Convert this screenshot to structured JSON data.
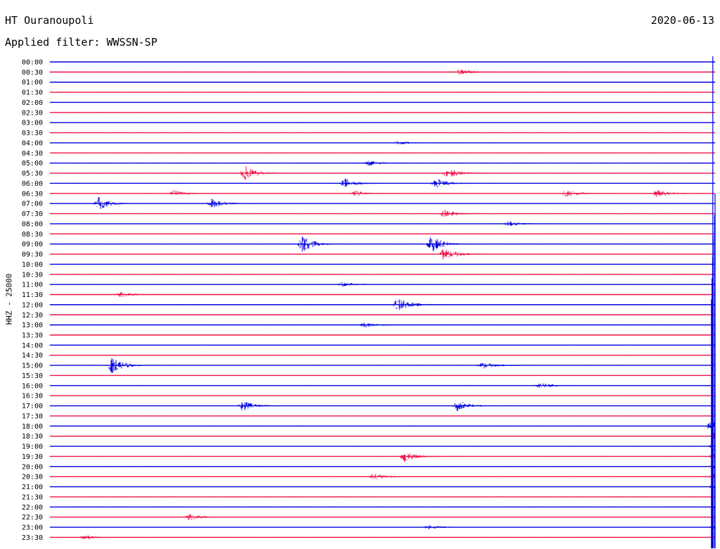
{
  "header": {
    "station": "HT Ouranoupoli",
    "date": "2020-06-13",
    "filter_label": "Applied filter: WWSSN-SP"
  },
  "channel_label": "HHZ - 25000",
  "colors": {
    "even_hour": "#0000dd",
    "odd_hour": "#ee1144",
    "background": "#ffffff"
  },
  "chart_data": {
    "type": "line",
    "kind": "helicorder",
    "row_duration_minutes": 30,
    "rows": [
      "00:00",
      "00:30",
      "01:00",
      "01:30",
      "02:00",
      "02:30",
      "03:00",
      "03:30",
      "04:00",
      "04:30",
      "05:00",
      "05:30",
      "06:00",
      "06:30",
      "07:00",
      "07:30",
      "08:00",
      "08:30",
      "09:00",
      "09:30",
      "10:00",
      "10:30",
      "11:00",
      "11:30",
      "12:00",
      "12:30",
      "13:00",
      "13:30",
      "14:00",
      "14:30",
      "15:00",
      "15:30",
      "16:00",
      "16:30",
      "17:00",
      "17:30",
      "18:00",
      "18:30",
      "19:00",
      "19:30",
      "20:00",
      "20:30",
      "21:00",
      "21:30",
      "22:00",
      "22:30",
      "23:00",
      "23:30"
    ],
    "events": [
      {
        "row": 1,
        "minute": 18.5,
        "amp": 0.6
      },
      {
        "row": 8,
        "minute": 15.7,
        "amp": 0.4
      },
      {
        "row": 10,
        "minute": 14.4,
        "amp": 0.5
      },
      {
        "row": 11,
        "minute": 8.8,
        "amp": 1.6
      },
      {
        "row": 11,
        "minute": 17.9,
        "amp": 1.1
      },
      {
        "row": 12,
        "minute": 13.3,
        "amp": 1.0
      },
      {
        "row": 12,
        "minute": 17.4,
        "amp": 1.0
      },
      {
        "row": 13,
        "minute": 5.6,
        "amp": 0.6
      },
      {
        "row": 13,
        "minute": 13.8,
        "amp": 0.6
      },
      {
        "row": 13,
        "minute": 23.3,
        "amp": 0.8
      },
      {
        "row": 13,
        "minute": 27.4,
        "amp": 0.8
      },
      {
        "row": 14,
        "minute": 2.2,
        "amp": 1.3
      },
      {
        "row": 14,
        "minute": 7.3,
        "amp": 1.0
      },
      {
        "row": 15,
        "minute": 17.8,
        "amp": 0.8
      },
      {
        "row": 16,
        "minute": 20.7,
        "amp": 0.5
      },
      {
        "row": 18,
        "minute": 11.4,
        "amp": 1.6
      },
      {
        "row": 18,
        "minute": 17.2,
        "amp": 1.7
      },
      {
        "row": 19,
        "minute": 17.8,
        "amp": 1.4
      },
      {
        "row": 22,
        "minute": 13.2,
        "amp": 0.5
      },
      {
        "row": 23,
        "minute": 3.2,
        "amp": 0.5
      },
      {
        "row": 24,
        "minute": 15.7,
        "amp": 1.6
      },
      {
        "row": 26,
        "minute": 14.2,
        "amp": 0.5
      },
      {
        "row": 30,
        "minute": 2.8,
        "amp": 1.6
      },
      {
        "row": 30,
        "minute": 19.5,
        "amp": 0.8
      },
      {
        "row": 32,
        "minute": 22.1,
        "amp": 0.6
      },
      {
        "row": 34,
        "minute": 8.7,
        "amp": 1.0
      },
      {
        "row": 34,
        "minute": 18.4,
        "amp": 1.2
      },
      {
        "row": 36,
        "minute": 29.8,
        "amp": 1.1
      },
      {
        "row": 39,
        "minute": 16.0,
        "amp": 1.1
      },
      {
        "row": 41,
        "minute": 14.6,
        "amp": 0.7
      },
      {
        "row": 45,
        "minute": 6.3,
        "amp": 0.6
      },
      {
        "row": 46,
        "minute": 17.1,
        "amp": 0.4
      },
      {
        "row": 47,
        "minute": 1.5,
        "amp": 0.5
      }
    ],
    "large_event": {
      "start_row": 36,
      "minute": 29.9,
      "peak_amp": 14,
      "coda_rows": 11
    }
  }
}
